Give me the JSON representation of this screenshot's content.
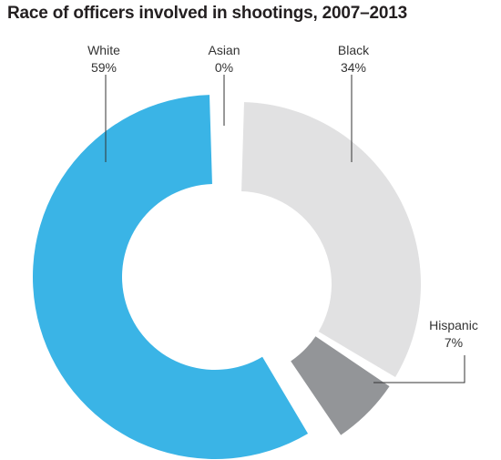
{
  "title": "Race of officers involved in shootings, 2007–2013",
  "chart_data": {
    "type": "pie",
    "title": "Race of officers involved in shootings, 2007–2013",
    "labels": [
      "Black",
      "Hispanic",
      "White",
      "Asian"
    ],
    "values": [
      34,
      7,
      59,
      0
    ],
    "value_labels": [
      "34%",
      "7%",
      "59%",
      "0%"
    ],
    "colors": [
      "#e1e1e2",
      "#939598",
      "#3ab4e6",
      "#3ab4e6"
    ],
    "donut": true
  }
}
